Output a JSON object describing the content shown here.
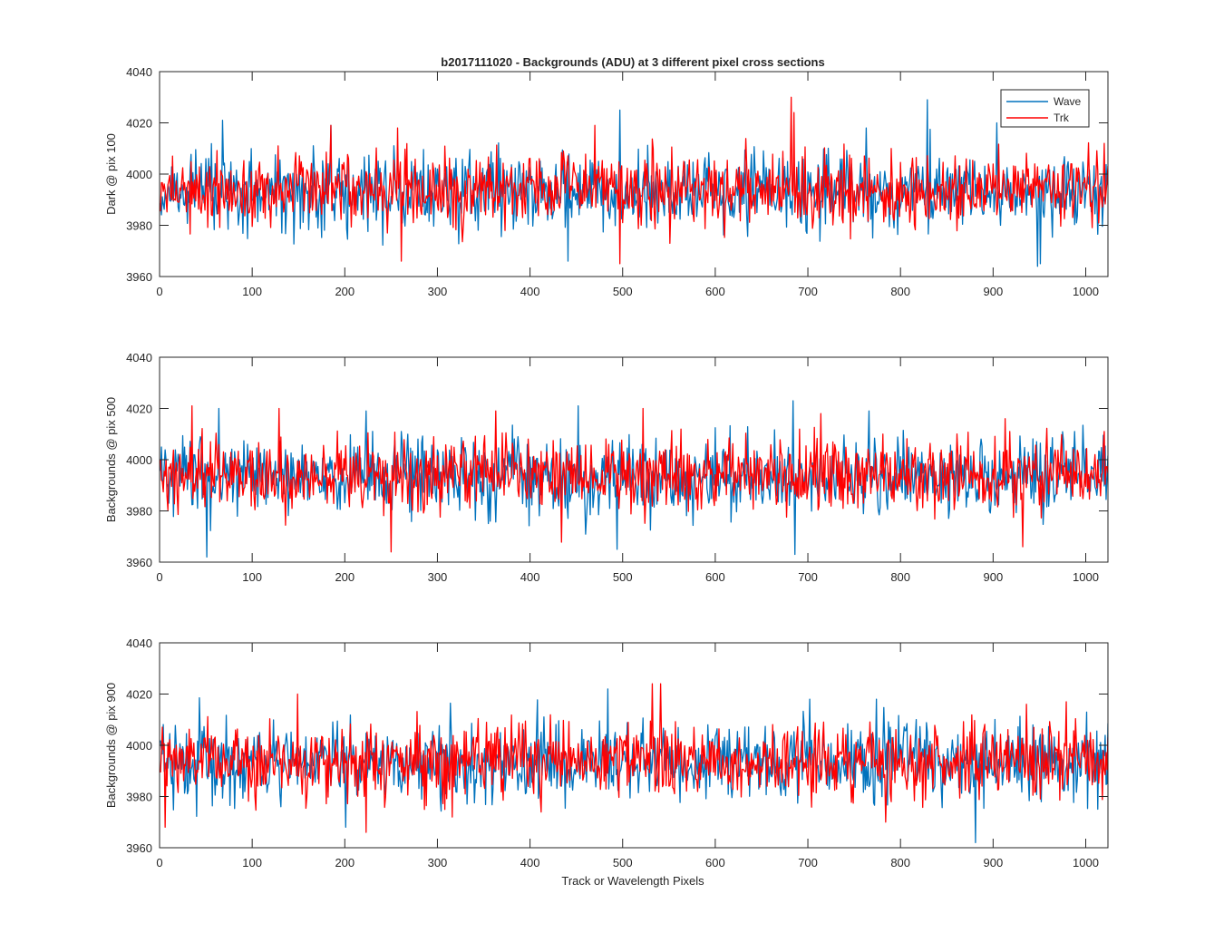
{
  "figure": {
    "title": "b2017111020 - Backgrounds (ADU) at 3 different pixel cross sections",
    "xlabel": "Track or Wavelength Pixels"
  },
  "legend": {
    "entries": [
      "Wave",
      "Trk"
    ],
    "placement": "top-right"
  },
  "colors": {
    "wave": "#0072BD",
    "trk": "#FF0000",
    "axes": "#262626",
    "background": "#ffffff"
  },
  "chart_data": [
    {
      "type": "line",
      "title": "b2017111020 - Backgrounds (ADU) at 3 different pixel cross sections",
      "xlabel": "",
      "ylabel": "Dark @ pix 100",
      "xlim": [
        0,
        1024
      ],
      "ylim": [
        3960,
        4040
      ],
      "xticks": [
        0,
        100,
        200,
        300,
        400,
        500,
        600,
        700,
        800,
        900,
        1000
      ],
      "yticks": [
        3960,
        3980,
        4000,
        4020,
        4040
      ],
      "grid": false,
      "legend": "top-right",
      "series": [
        {
          "name": "Wave",
          "color": "#0072BD",
          "n_points": 1024,
          "mean": 3993,
          "stdev": 7.5,
          "peaks": [
            [
              67,
              4021
            ],
            [
              184,
              4019
            ],
            [
              496,
              4025
            ],
            [
              762,
              4018
            ],
            [
              828,
              4029
            ],
            [
              903,
              4020
            ]
          ],
          "troughs": [
            [
              440,
              3966
            ],
            [
              947,
              3964
            ],
            [
              950,
              3965
            ]
          ]
        },
        {
          "name": "Trk",
          "color": "#FF0000",
          "n_points": 1024,
          "mean": 3994,
          "stdev": 7,
          "peaks": [
            [
              184,
              4019
            ],
            [
              256,
              4018
            ],
            [
              469,
              4019
            ],
            [
              681,
              4030
            ],
            [
              684,
              4024
            ],
            [
              1019,
              4012
            ]
          ],
          "troughs": [
            [
              260,
              3966
            ],
            [
              496,
              3965
            ]
          ]
        }
      ]
    },
    {
      "type": "line",
      "xlabel": "",
      "ylabel": "Backgrounds @ pix 500",
      "xlim": [
        0,
        1024
      ],
      "ylim": [
        3960,
        4040
      ],
      "xticks": [
        0,
        100,
        200,
        300,
        400,
        500,
        600,
        700,
        800,
        900,
        1000
      ],
      "yticks": [
        3960,
        3980,
        4000,
        4020,
        4040
      ],
      "grid": false,
      "series": [
        {
          "name": "Wave",
          "color": "#0072BD",
          "n_points": 1024,
          "mean": 3993,
          "stdev": 7.5,
          "peaks": [
            [
              63,
              4020
            ],
            [
              222,
              4019
            ],
            [
              451,
              4021
            ],
            [
              683,
              4023
            ],
            [
              765,
              4019
            ]
          ],
          "troughs": [
            [
              50,
              3962
            ],
            [
              493,
              3965
            ],
            [
              685,
              3963
            ]
          ]
        },
        {
          "name": "Trk",
          "color": "#FF0000",
          "n_points": 1024,
          "mean": 3994,
          "stdev": 7,
          "peaks": [
            [
              34,
              4021
            ],
            [
              128,
              4020
            ],
            [
              362,
              4019
            ],
            [
              521,
              4020
            ],
            [
              713,
              4018
            ],
            [
              912,
              4016
            ],
            [
              1019,
              4011
            ]
          ],
          "troughs": [
            [
              249,
              3964
            ],
            [
              931,
              3966
            ]
          ]
        }
      ]
    },
    {
      "type": "line",
      "xlabel": "Track or Wavelength Pixels",
      "ylabel": "Backgrounds @ pix 900",
      "xlim": [
        0,
        1024
      ],
      "ylim": [
        3960,
        4040
      ],
      "xticks": [
        0,
        100,
        200,
        300,
        400,
        500,
        600,
        700,
        800,
        900,
        1000
      ],
      "yticks": [
        3960,
        3980,
        4000,
        4020,
        4040
      ],
      "grid": false,
      "series": [
        {
          "name": "Wave",
          "color": "#0072BD",
          "n_points": 1024,
          "mean": 3993,
          "stdev": 7.5,
          "peaks": [
            [
              483,
              4022
            ],
            [
              701,
              4018
            ],
            [
              773,
              4018
            ]
          ],
          "troughs": [
            [
              200,
              3968
            ],
            [
              880,
              3962
            ]
          ]
        },
        {
          "name": "Trk",
          "color": "#FF0000",
          "n_points": 1024,
          "mean": 3994,
          "stdev": 7,
          "peaks": [
            [
              148,
              4020
            ],
            [
              531,
              4024
            ],
            [
              540,
              4024
            ],
            [
              935,
              4016
            ],
            [
              978,
              4017
            ]
          ],
          "troughs": [
            [
              5,
              3968
            ],
            [
              222,
              3966
            ],
            [
              783,
              3970
            ]
          ]
        }
      ]
    }
  ]
}
